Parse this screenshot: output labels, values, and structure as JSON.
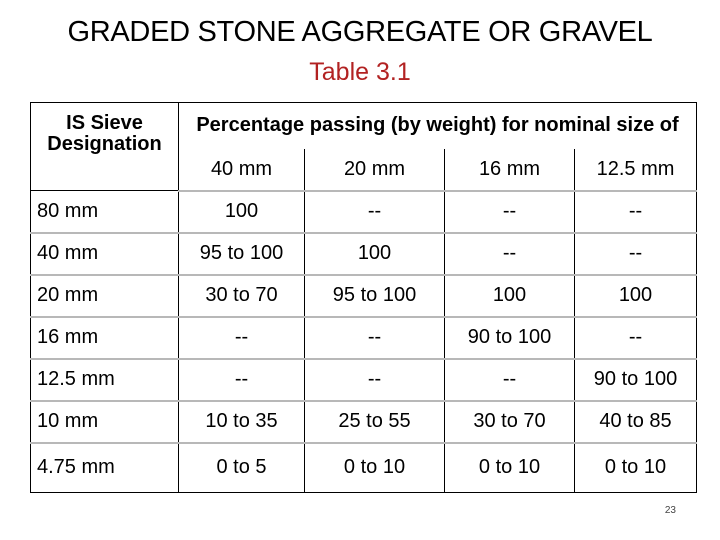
{
  "title": "GRADED STONE AGGREGATE OR GRAVEL",
  "subtitle": "Table 3.1",
  "table": {
    "sieve_header": "IS Sieve Designation",
    "percentage_header": "Percentage passing (by weight) for nominal size of",
    "sizes": [
      "40 mm",
      "20 mm",
      "16 mm",
      "12.5 mm"
    ],
    "rows": [
      {
        "sieve": "80 mm",
        "values": [
          "100",
          "--",
          "--",
          "--"
        ]
      },
      {
        "sieve": "40 mm",
        "values": [
          "95 to 100",
          "100",
          "--",
          "--"
        ]
      },
      {
        "sieve": "20 mm",
        "values": [
          "30 to 70",
          "95 to 100",
          "100",
          "100"
        ]
      },
      {
        "sieve": "16 mm",
        "values": [
          "--",
          "--",
          "90 to 100",
          "--"
        ]
      },
      {
        "sieve": "12.5 mm",
        "values": [
          "--",
          "--",
          "--",
          "90 to 100"
        ]
      },
      {
        "sieve": "10 mm",
        "values": [
          "10 to 35",
          "25 to 55",
          "30 to 70",
          "40 to 85"
        ]
      },
      {
        "sieve": "4.75 mm",
        "values": [
          "0 to 5",
          "0 to 10",
          "0 to 10",
          "0 to 10"
        ]
      }
    ]
  },
  "page_number": "23"
}
